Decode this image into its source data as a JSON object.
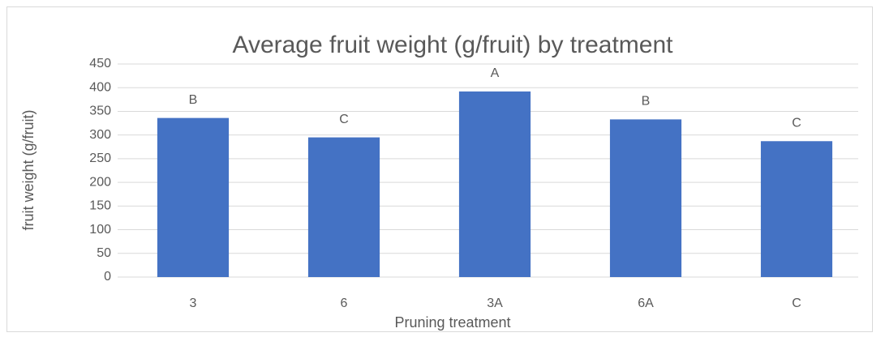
{
  "chart_data": {
    "type": "bar",
    "title": "Average fruit weight (g/fruit) by treatment",
    "x_label": "Pruning treatment",
    "y_label": "fruit weight (g/fruit)",
    "categories": [
      "3",
      "6",
      "3A",
      "6A",
      "C"
    ],
    "values": [
      336,
      295,
      392,
      333,
      287
    ],
    "annotations": [
      "B",
      "C",
      "A",
      "B",
      "C"
    ],
    "color": "#4472c4",
    "ylim": [
      0,
      450
    ],
    "yticks": [
      0,
      50,
      100,
      150,
      200,
      250,
      300,
      350,
      400,
      450
    ],
    "grid": true
  }
}
